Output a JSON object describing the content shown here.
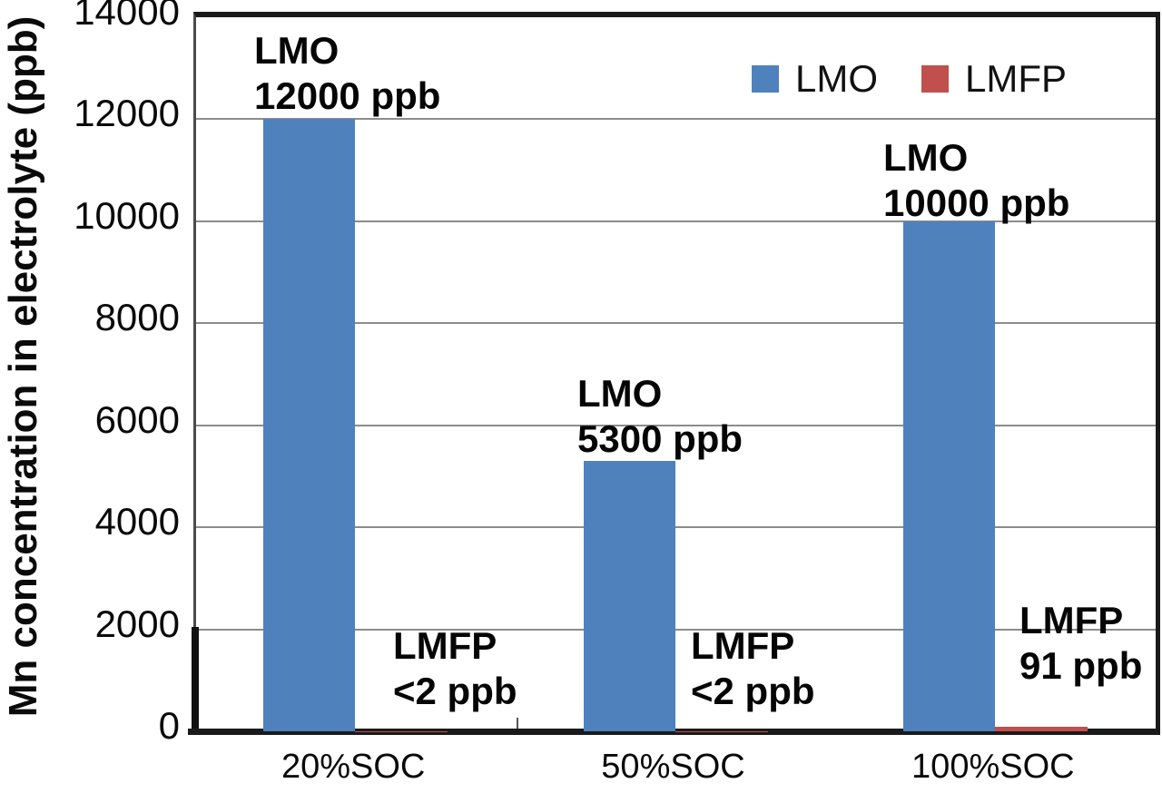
{
  "chart_data": {
    "type": "bar",
    "title": "",
    "xlabel": "",
    "ylabel": "Mn concentration in electrolyte (ppb)",
    "categories": [
      "20%SOC",
      "50%SOC",
      "100%SOC"
    ],
    "series": [
      {
        "name": "LMO",
        "color": "#4F81BD",
        "values": [
          12000,
          5300,
          10000
        ],
        "value_labels": [
          "12000 ppb",
          "5300 ppb",
          "10000 ppb"
        ]
      },
      {
        "name": "LMFP",
        "color": "#C0504D",
        "values": [
          2,
          2,
          91
        ],
        "value_labels": [
          "<2 ppb",
          "<2 ppb",
          "91 ppb"
        ]
      }
    ],
    "ylim": [
      0,
      14000
    ],
    "yticks": [
      0,
      2000,
      4000,
      6000,
      8000,
      10000,
      12000,
      14000
    ],
    "grid": "horizontal",
    "gridline_color": "#8C8C8C",
    "legend_position": "top-right-inside"
  },
  "legend": {
    "items": [
      {
        "label": "LMO",
        "color": "#4F81BD"
      },
      {
        "label": "LMFP",
        "color": "#C0504D"
      }
    ]
  },
  "annotations": [
    {
      "line1": "LMO",
      "line2": "12000 ppb"
    },
    {
      "line1": "LMFP",
      "line2": "<2 ppb"
    },
    {
      "line1": "LMO",
      "line2": "5300 ppb"
    },
    {
      "line1": "LMFP",
      "line2": "<2 ppb"
    },
    {
      "line1": "LMO",
      "line2": "10000 ppb"
    },
    {
      "line1": "LMFP",
      "line2": "91 ppb"
    }
  ]
}
